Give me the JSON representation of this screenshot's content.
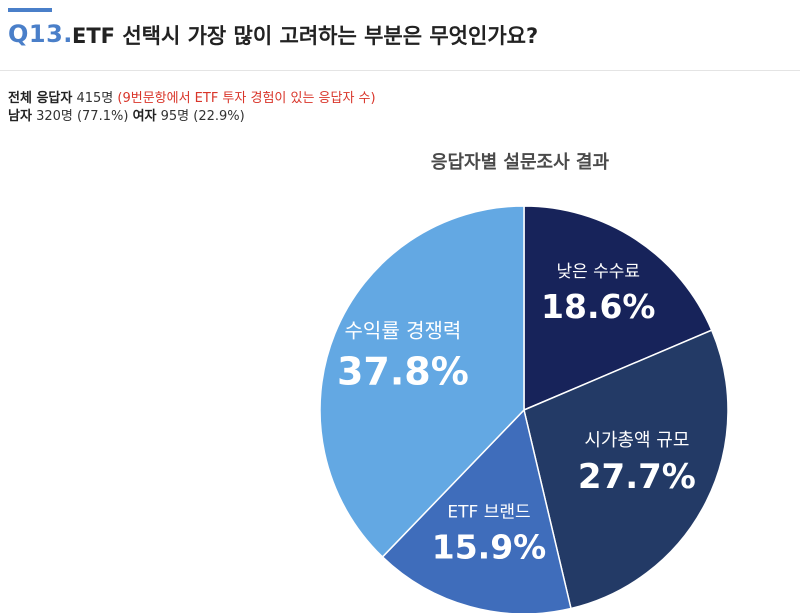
{
  "question": {
    "number": "Q13.",
    "title": "ETF 선택시 가장 많이 고려하는 부분은 무엇인가요?"
  },
  "respondents": {
    "total_label": "전체 응답자",
    "total_value": "415명",
    "total_note": "(9번문항에서 ETF 투자 경험이 있는 응답자 수)",
    "male_label": "남자",
    "male_value": "320명 (77.1%)",
    "female_label": "여자",
    "female_value": "95명 (22.9%)"
  },
  "chart_data": {
    "type": "pie",
    "title": "응답자별 설문조사 결과",
    "start": "12 o'clock, clockwise",
    "slices": [
      {
        "label": "낮은 수수료",
        "value": 18.6,
        "display": "18.6%",
        "color": "#17235a"
      },
      {
        "label": "시가총액 규모",
        "value": 27.7,
        "display": "27.7%",
        "color": "#233a66"
      },
      {
        "label": "ETF 브랜드",
        "value": 15.9,
        "display": "15.9%",
        "color": "#3f6dbb"
      },
      {
        "label": "수익률 경쟁력",
        "value": 37.8,
        "display": "37.8%",
        "color": "#63a8e3"
      }
    ]
  }
}
